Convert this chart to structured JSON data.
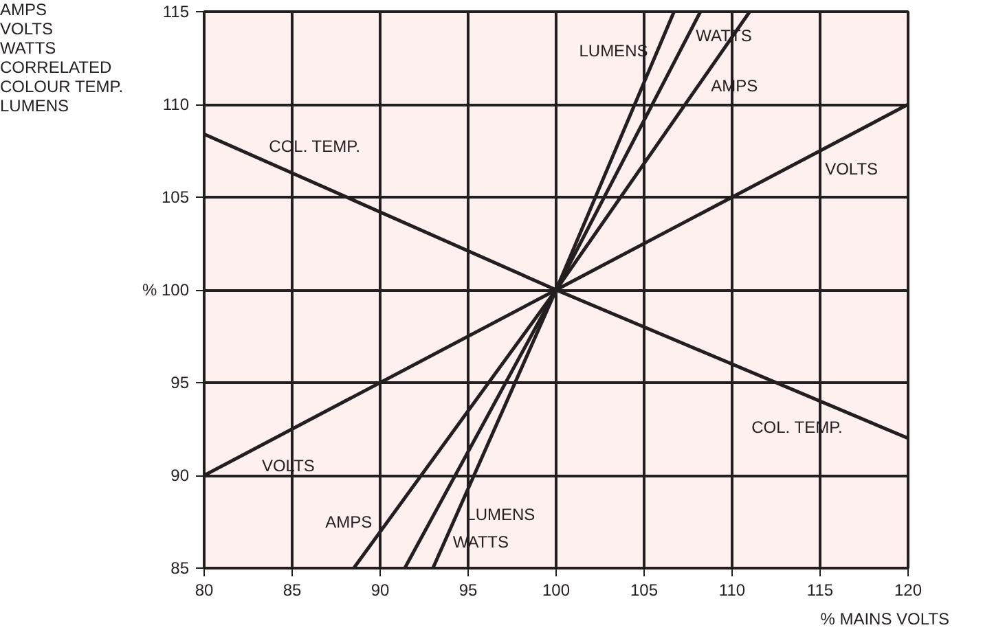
{
  "chart_data": {
    "type": "line",
    "xlabel": "% MAINS VOLTS",
    "series": [
      {
        "color": "#231f20",
        "x": [
          80,
          100,
          120
        ],
        "values": [
          90,
          100,
          110
        ]
      },
      {
        "color": "#231f20",
        "x": [
          80,
          100,
          120
        ],
        "values": [
          108.4,
          100,
          92
        ]
      },
      {
        "color": "#231f20",
        "x": [
          88.5,
          100,
          111
        ],
        "values": [
          85,
          100,
          115
        ]
      },
      {
        "color": "#231f20",
        "x": [
          91.4,
          100,
          108.2
        ],
        "values": [
          85,
          100,
          115
        ]
      },
      {
        "color": "#231f20",
        "x": [
          93.0,
          100,
          106.7
        ],
        "values": [
          85,
          100,
          115
        ]
      }
    ],
    "xlim": [
      80,
      120
    ],
    "ylim": [
      85,
      115
    ],
    "xticks": [
      80,
      85,
      90,
      95,
      100,
      105,
      110,
      115,
      120
    ],
    "yticks": [
      85,
      90,
      95,
      {
        "value": 100,
        "label": "% 100"
      },
      105,
      110,
      115
    ],
    "grid": true,
    "marker": "none",
    "line_style": "solid",
    "annotations": [
      "AMPS",
      "VOLTS",
      "WATTS",
      "CORRELATED COLOUR TEMP.",
      "LUMENS",
      {
        "text": "COL. TEMP.",
        "x": 85.5,
        "y": 106.1
      },
      {
        "text": "VOLTS",
        "x": 84,
        "y": 92
      },
      {
        "text": "AMPS",
        "x": 90.4,
        "y": 87.5
      },
      {
        "text": "WATTS",
        "x": 92.2,
        "y": 86.4
      },
      {
        "text": "LUMENS",
        "x": 94.35,
        "y": 87.9
      },
      {
        "text": "LUMENS",
        "x": 105.76,
        "y": 112.9
      },
      {
        "text": "WATTS",
        "x": 107.5,
        "y": 113.7
      },
      {
        "text": "AMPS",
        "x": 108.1,
        "y": 111
      },
      {
        "text": "VOLTS",
        "x": 116,
        "y": 108
      },
      {
        "text": "COL. TEMP.",
        "x": 113.7,
        "y": 94.52
      }
    ]
  }
}
